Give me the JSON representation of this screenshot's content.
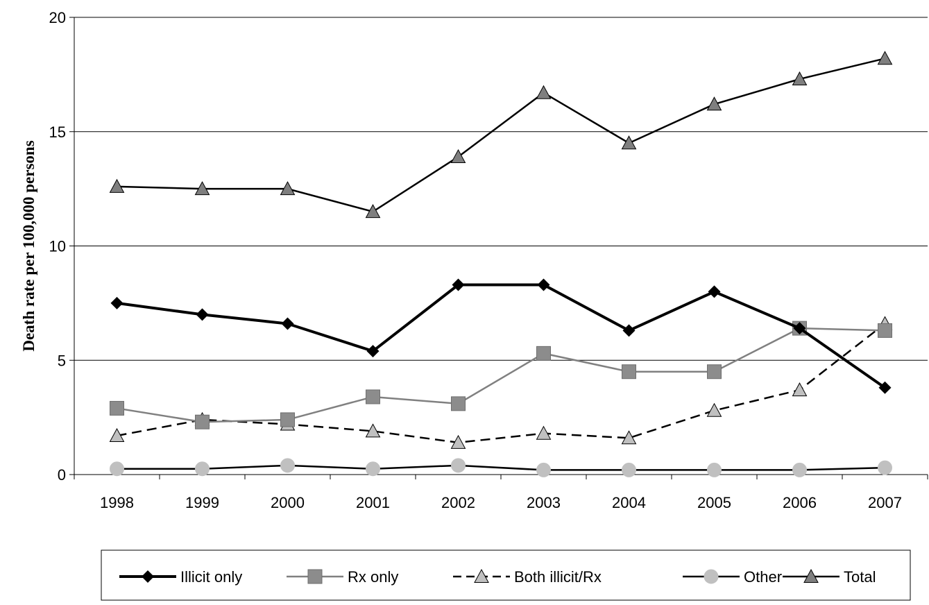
{
  "chart_data": {
    "type": "line",
    "title": "",
    "xlabel": "",
    "ylabel": "Death rate per 100,000 persons",
    "x": [
      "1998",
      "1999",
      "2000",
      "2001",
      "2002",
      "2003",
      "2004",
      "2005",
      "2006",
      "2007"
    ],
    "ylim": [
      0,
      20
    ],
    "yticks": [
      "0",
      "5",
      "10",
      "15",
      "20"
    ],
    "grid": "horizontal",
    "legend_position": "bottom",
    "series": [
      {
        "name": "Illicit only",
        "values": [
          7.5,
          7.0,
          6.6,
          5.4,
          8.3,
          8.3,
          6.3,
          8.0,
          6.4,
          3.8
        ],
        "color": "#000000",
        "marker": "diamond",
        "line": "solid-thick"
      },
      {
        "name": "Rx only",
        "values": [
          2.9,
          2.3,
          2.4,
          3.4,
          3.1,
          5.3,
          4.5,
          4.5,
          6.4,
          6.3
        ],
        "color": "#808080",
        "marker": "square",
        "line": "solid"
      },
      {
        "name": "Both illicit/Rx",
        "values": [
          1.7,
          2.4,
          2.2,
          1.9,
          1.4,
          1.8,
          1.6,
          2.8,
          3.7,
          6.6
        ],
        "color": "#000000",
        "marker": "triangle-light",
        "line": "dashed"
      },
      {
        "name": "Other",
        "values": [
          0.25,
          0.25,
          0.4,
          0.25,
          0.4,
          0.2,
          0.2,
          0.2,
          0.2,
          0.3
        ],
        "color": "#000000",
        "marker": "circle",
        "line": "solid"
      },
      {
        "name": "Total",
        "values": [
          12.6,
          12.5,
          12.5,
          11.5,
          13.9,
          16.7,
          14.5,
          16.2,
          17.3,
          18.2
        ],
        "color": "#000000",
        "marker": "triangle-dark",
        "line": "solid"
      }
    ]
  }
}
